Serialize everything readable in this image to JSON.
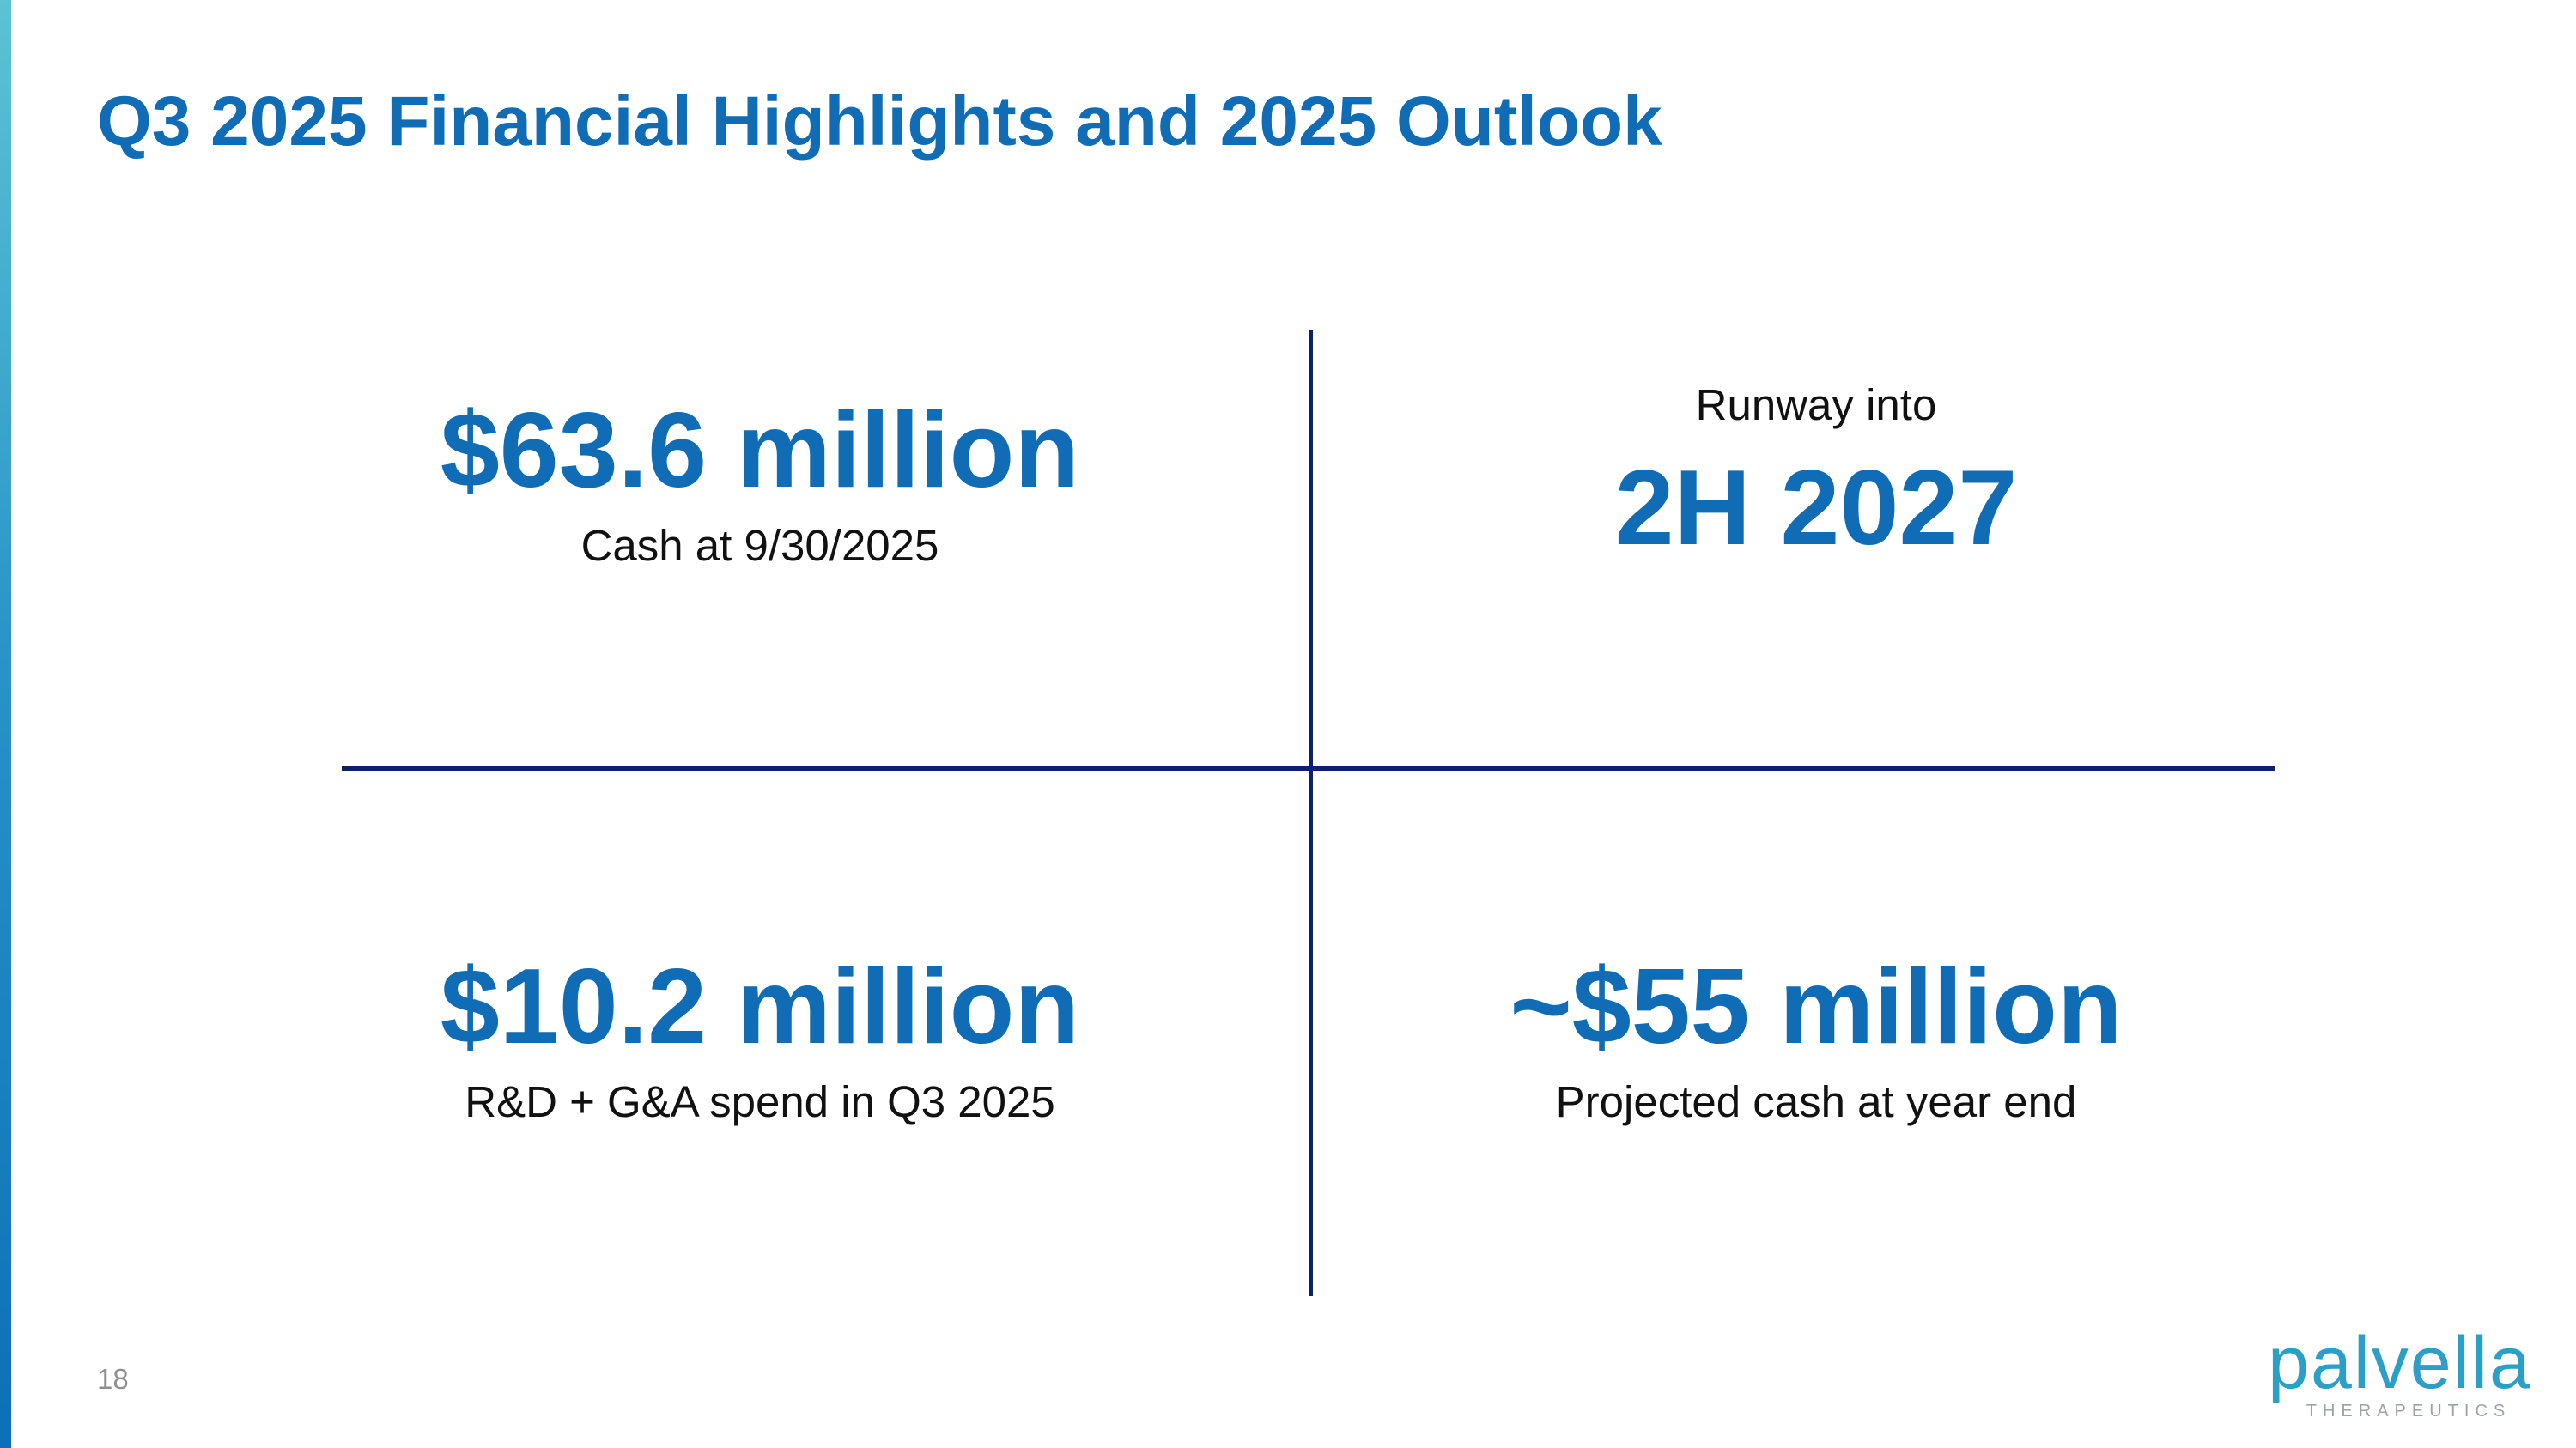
{
  "slide": {
    "title": "Q3 2025 Financial Highlights and 2025 Outlook",
    "page_number": "18"
  },
  "metrics": {
    "cash": {
      "value": "$63.6 million",
      "caption": "Cash at 9/30/2025"
    },
    "runway": {
      "prefix": "Runway into",
      "value": "2H 2027"
    },
    "spend": {
      "value": "$10.2 million",
      "caption": "R&D + G&A spend in Q3 2025"
    },
    "projected": {
      "value": "~$55 million",
      "caption": "Projected cash at year end"
    }
  },
  "logo": {
    "name": "palvella",
    "tagline": "THERAPEUTICS"
  },
  "colors": {
    "accent": "#0f6cb5",
    "divider": "#0b2266",
    "logo": "#2c9fc6"
  }
}
